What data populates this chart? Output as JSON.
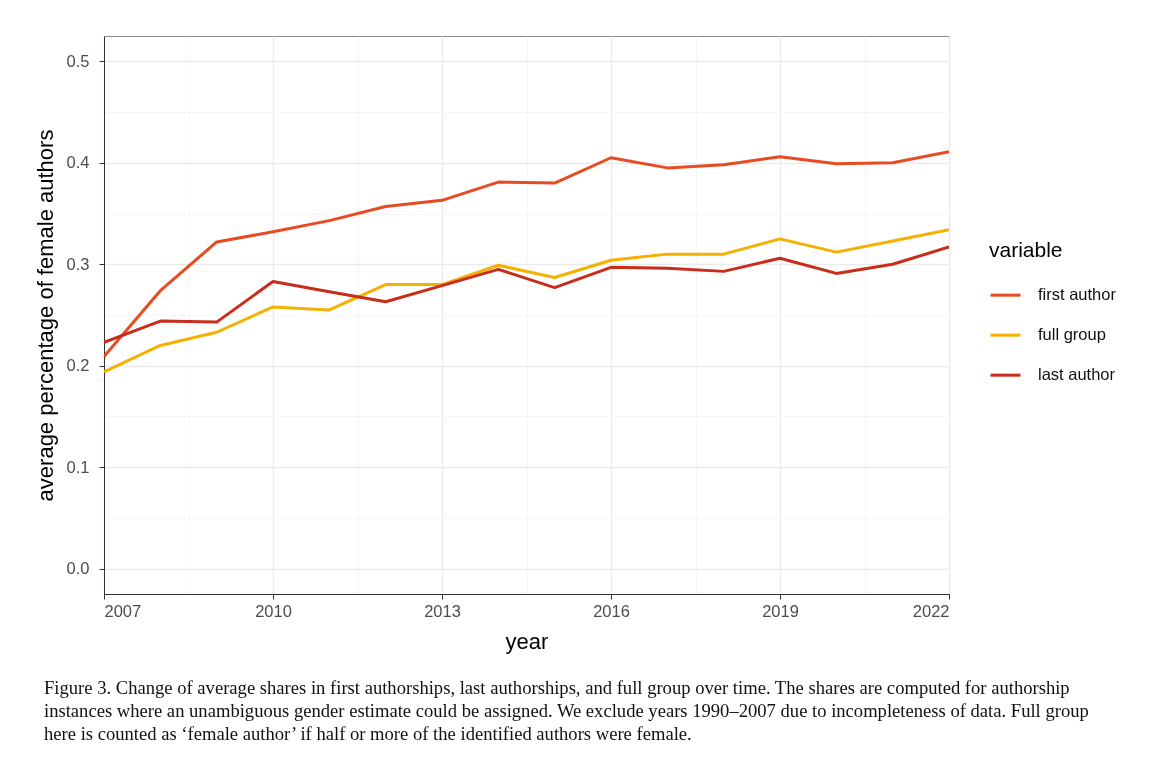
{
  "chart_data": {
    "type": "line",
    "xlabel": "year",
    "ylabel": "average percentage of female authors",
    "legend_title": "variable",
    "x": [
      2007,
      2008,
      2009,
      2010,
      2011,
      2012,
      2013,
      2014,
      2015,
      2016,
      2017,
      2018,
      2019,
      2020,
      2021,
      2022
    ],
    "xlim": [
      2007,
      2022
    ],
    "xticks": [
      2007,
      2010,
      2013,
      2016,
      2019,
      2022
    ],
    "ylim": [
      -0.025,
      0.525
    ],
    "yticks": [
      {
        "value": 0,
        "label": "0.0"
      },
      0.1,
      0.2,
      0.3,
      0.4,
      0.5
    ],
    "grid": true,
    "legend": "right",
    "series": [
      {
        "name": "first author",
        "color": "#e64b22",
        "values": [
          0.209,
          0.274,
          0.322,
          0.332,
          0.343,
          0.357,
          0.363,
          0.381,
          0.38,
          0.405,
          0.395,
          0.398,
          0.406,
          0.399,
          0.4,
          0.411
        ]
      },
      {
        "name": "full group",
        "color": "#f5b000",
        "values": [
          0.194,
          0.22,
          0.233,
          0.258,
          0.255,
          0.28,
          0.28,
          0.299,
          0.287,
          0.304,
          0.31,
          0.31,
          0.325,
          0.312,
          0.323,
          0.334
        ]
      },
      {
        "name": "last author",
        "color": "#c72d1a",
        "values": [
          0.223,
          0.244,
          0.243,
          0.283,
          0.273,
          0.263,
          0.279,
          0.295,
          0.277,
          0.297,
          0.296,
          0.293,
          0.306,
          0.291,
          0.3,
          0.317
        ]
      }
    ],
    "annotations": [
      "Figure 3. Change of average shares in first authorships, last authorships, and full group over time. The shares are computed for authorship instances where an unambiguous gender estimate could be assigned. We exclude years 1990–2007 due to incompleteness of data. Full group here is counted as ‘female author’ if half or more of the identified authors were female."
    ]
  }
}
